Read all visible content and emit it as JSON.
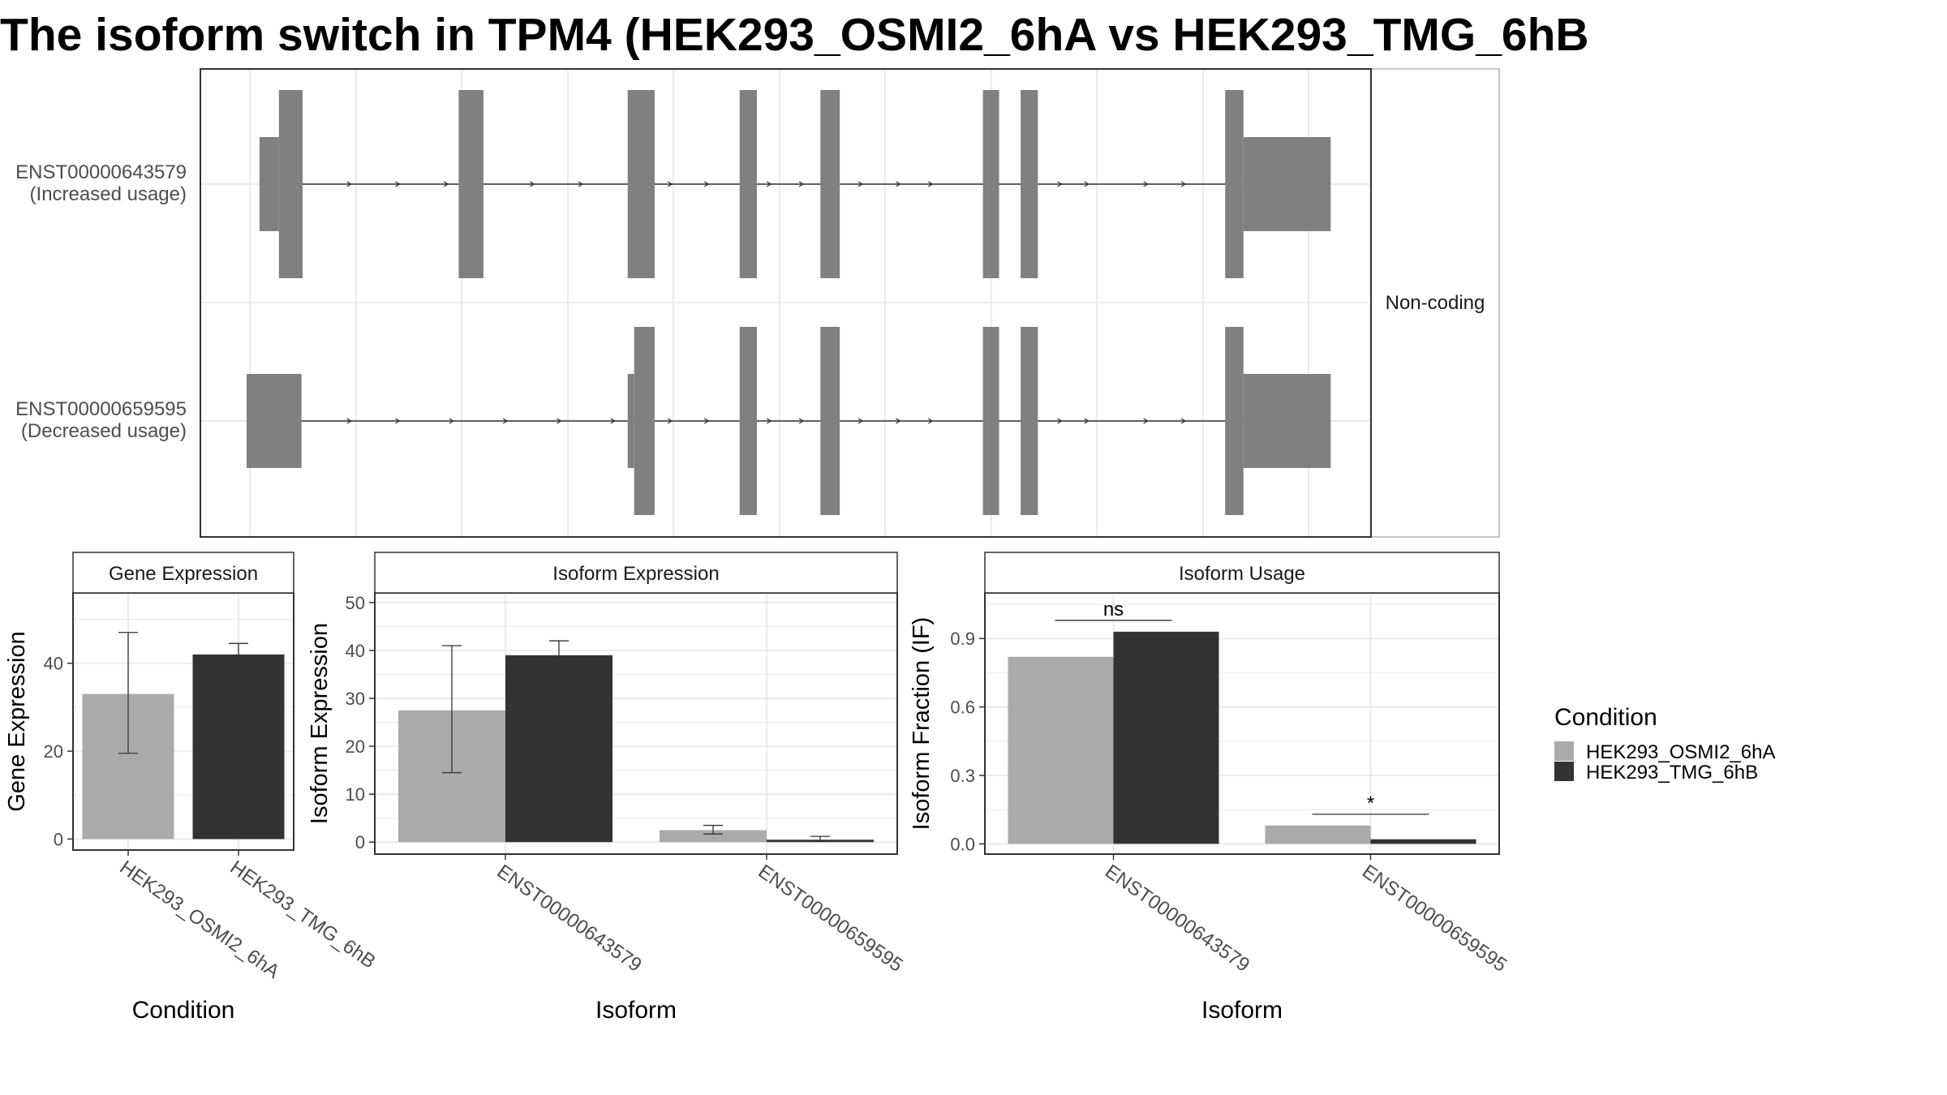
{
  "title": "The isoform switch in TPM4 (HEK293_OSMI2_6hA vs HEK293_TMG_6hB",
  "colors": {
    "exon": "#808080",
    "intron": "#333333",
    "condition_a": "#aaaaaa",
    "condition_b": "#333333",
    "strip_bg": "#ffffff",
    "grid": "#ebebeb",
    "axis_text": "#4d4d4d"
  },
  "chart_data": [
    {
      "type": "gene-structure",
      "strip_label": "Non-coding",
      "x_genomic_range": [
        0,
        1000
      ],
      "isoforms": [
        {
          "name": "ENST00000643579",
          "usage_label": "(Increased usage)",
          "exons": [
            {
              "start": 15,
              "end": 33,
              "kind": "utr"
            },
            {
              "start": 33,
              "end": 55,
              "kind": "coding"
            },
            {
              "start": 200,
              "end": 223,
              "kind": "coding"
            },
            {
              "start": 357,
              "end": 382,
              "kind": "coding"
            },
            {
              "start": 461,
              "end": 477,
              "kind": "coding"
            },
            {
              "start": 536,
              "end": 554,
              "kind": "coding"
            },
            {
              "start": 687,
              "end": 702,
              "kind": "coding"
            },
            {
              "start": 722,
              "end": 738,
              "kind": "coding"
            },
            {
              "start": 912,
              "end": 929,
              "kind": "coding"
            },
            {
              "start": 929,
              "end": 1010,
              "kind": "utr"
            }
          ],
          "intron_arrow_positions": [
            100,
            145,
            190,
            270,
            315,
            398,
            432,
            490,
            520,
            575,
            610,
            640,
            760,
            785,
            840,
            875
          ]
        },
        {
          "name": "ENST00000659595",
          "usage_label": "(Decreased usage)",
          "exons": [
            {
              "start": 3,
              "end": 54,
              "kind": "utr"
            },
            {
              "start": 357,
              "end": 363,
              "kind": "utr"
            },
            {
              "start": 363,
              "end": 382,
              "kind": "coding"
            },
            {
              "start": 461,
              "end": 477,
              "kind": "coding"
            },
            {
              "start": 536,
              "end": 554,
              "kind": "coding"
            },
            {
              "start": 687,
              "end": 702,
              "kind": "coding"
            },
            {
              "start": 722,
              "end": 738,
              "kind": "coding"
            },
            {
              "start": 912,
              "end": 929,
              "kind": "coding"
            },
            {
              "start": 929,
              "end": 1010,
              "kind": "utr"
            }
          ],
          "intron_arrow_positions": [
            100,
            145,
            195,
            245,
            295,
            345,
            398,
            432,
            490,
            520,
            575,
            610,
            640,
            760,
            785,
            840,
            875
          ]
        }
      ]
    },
    {
      "type": "bar",
      "strip_label": "Gene Expression",
      "ylabel": "Gene Expression",
      "xlabel": "Condition",
      "categories": [
        "HEK293_OSMI2_6hA",
        "HEK293_TMG_6hB"
      ],
      "values": [
        33.0,
        42.0
      ],
      "error_low": [
        19.5,
        39.5
      ],
      "error_high": [
        47.0,
        44.5
      ],
      "ylim": [
        -2.5,
        56
      ],
      "yticks": [
        0,
        20,
        40
      ],
      "grid": true
    },
    {
      "type": "bar",
      "strip_label": "Isoform Expression",
      "ylabel": "Isoform Expression",
      "xlabel": "Isoform",
      "categories": [
        "ENST00000643579",
        "ENST00000659595"
      ],
      "series": [
        {
          "name": "HEK293_OSMI2_6hA",
          "values": [
            27.5,
            2.5
          ],
          "error_low": [
            14.5,
            1.7
          ],
          "error_high": [
            41.0,
            3.5
          ]
        },
        {
          "name": "HEK293_TMG_6hB",
          "values": [
            39.0,
            0.5
          ],
          "error_low": [
            36.0,
            0.2
          ],
          "error_high": [
            42.0,
            1.2
          ]
        }
      ],
      "ylim": [
        -2.5,
        52
      ],
      "yticks": [
        0,
        10,
        20,
        30,
        40,
        50
      ],
      "grid": true
    },
    {
      "type": "bar",
      "strip_label": "Isoform Usage",
      "ylabel": "Isoform Fraction (IF)",
      "xlabel": "Isoform",
      "categories": [
        "ENST00000643579",
        "ENST00000659595"
      ],
      "series": [
        {
          "name": "HEK293_OSMI2_6hA",
          "values": [
            0.82,
            0.08
          ]
        },
        {
          "name": "HEK293_TMG_6hB",
          "values": [
            0.93,
            0.02
          ]
        }
      ],
      "significance": [
        "ns",
        "*"
      ],
      "ylim": [
        -0.045,
        1.1
      ],
      "yticks": [
        0.0,
        0.3,
        0.6,
        0.9
      ],
      "ytick_labels": [
        "0.0",
        "0.3",
        "0.6",
        "0.9"
      ],
      "grid": true
    }
  ],
  "legend": {
    "title": "Condition",
    "position": "right",
    "items": [
      "HEK293_OSMI2_6hA",
      "HEK293_TMG_6hB"
    ]
  }
}
